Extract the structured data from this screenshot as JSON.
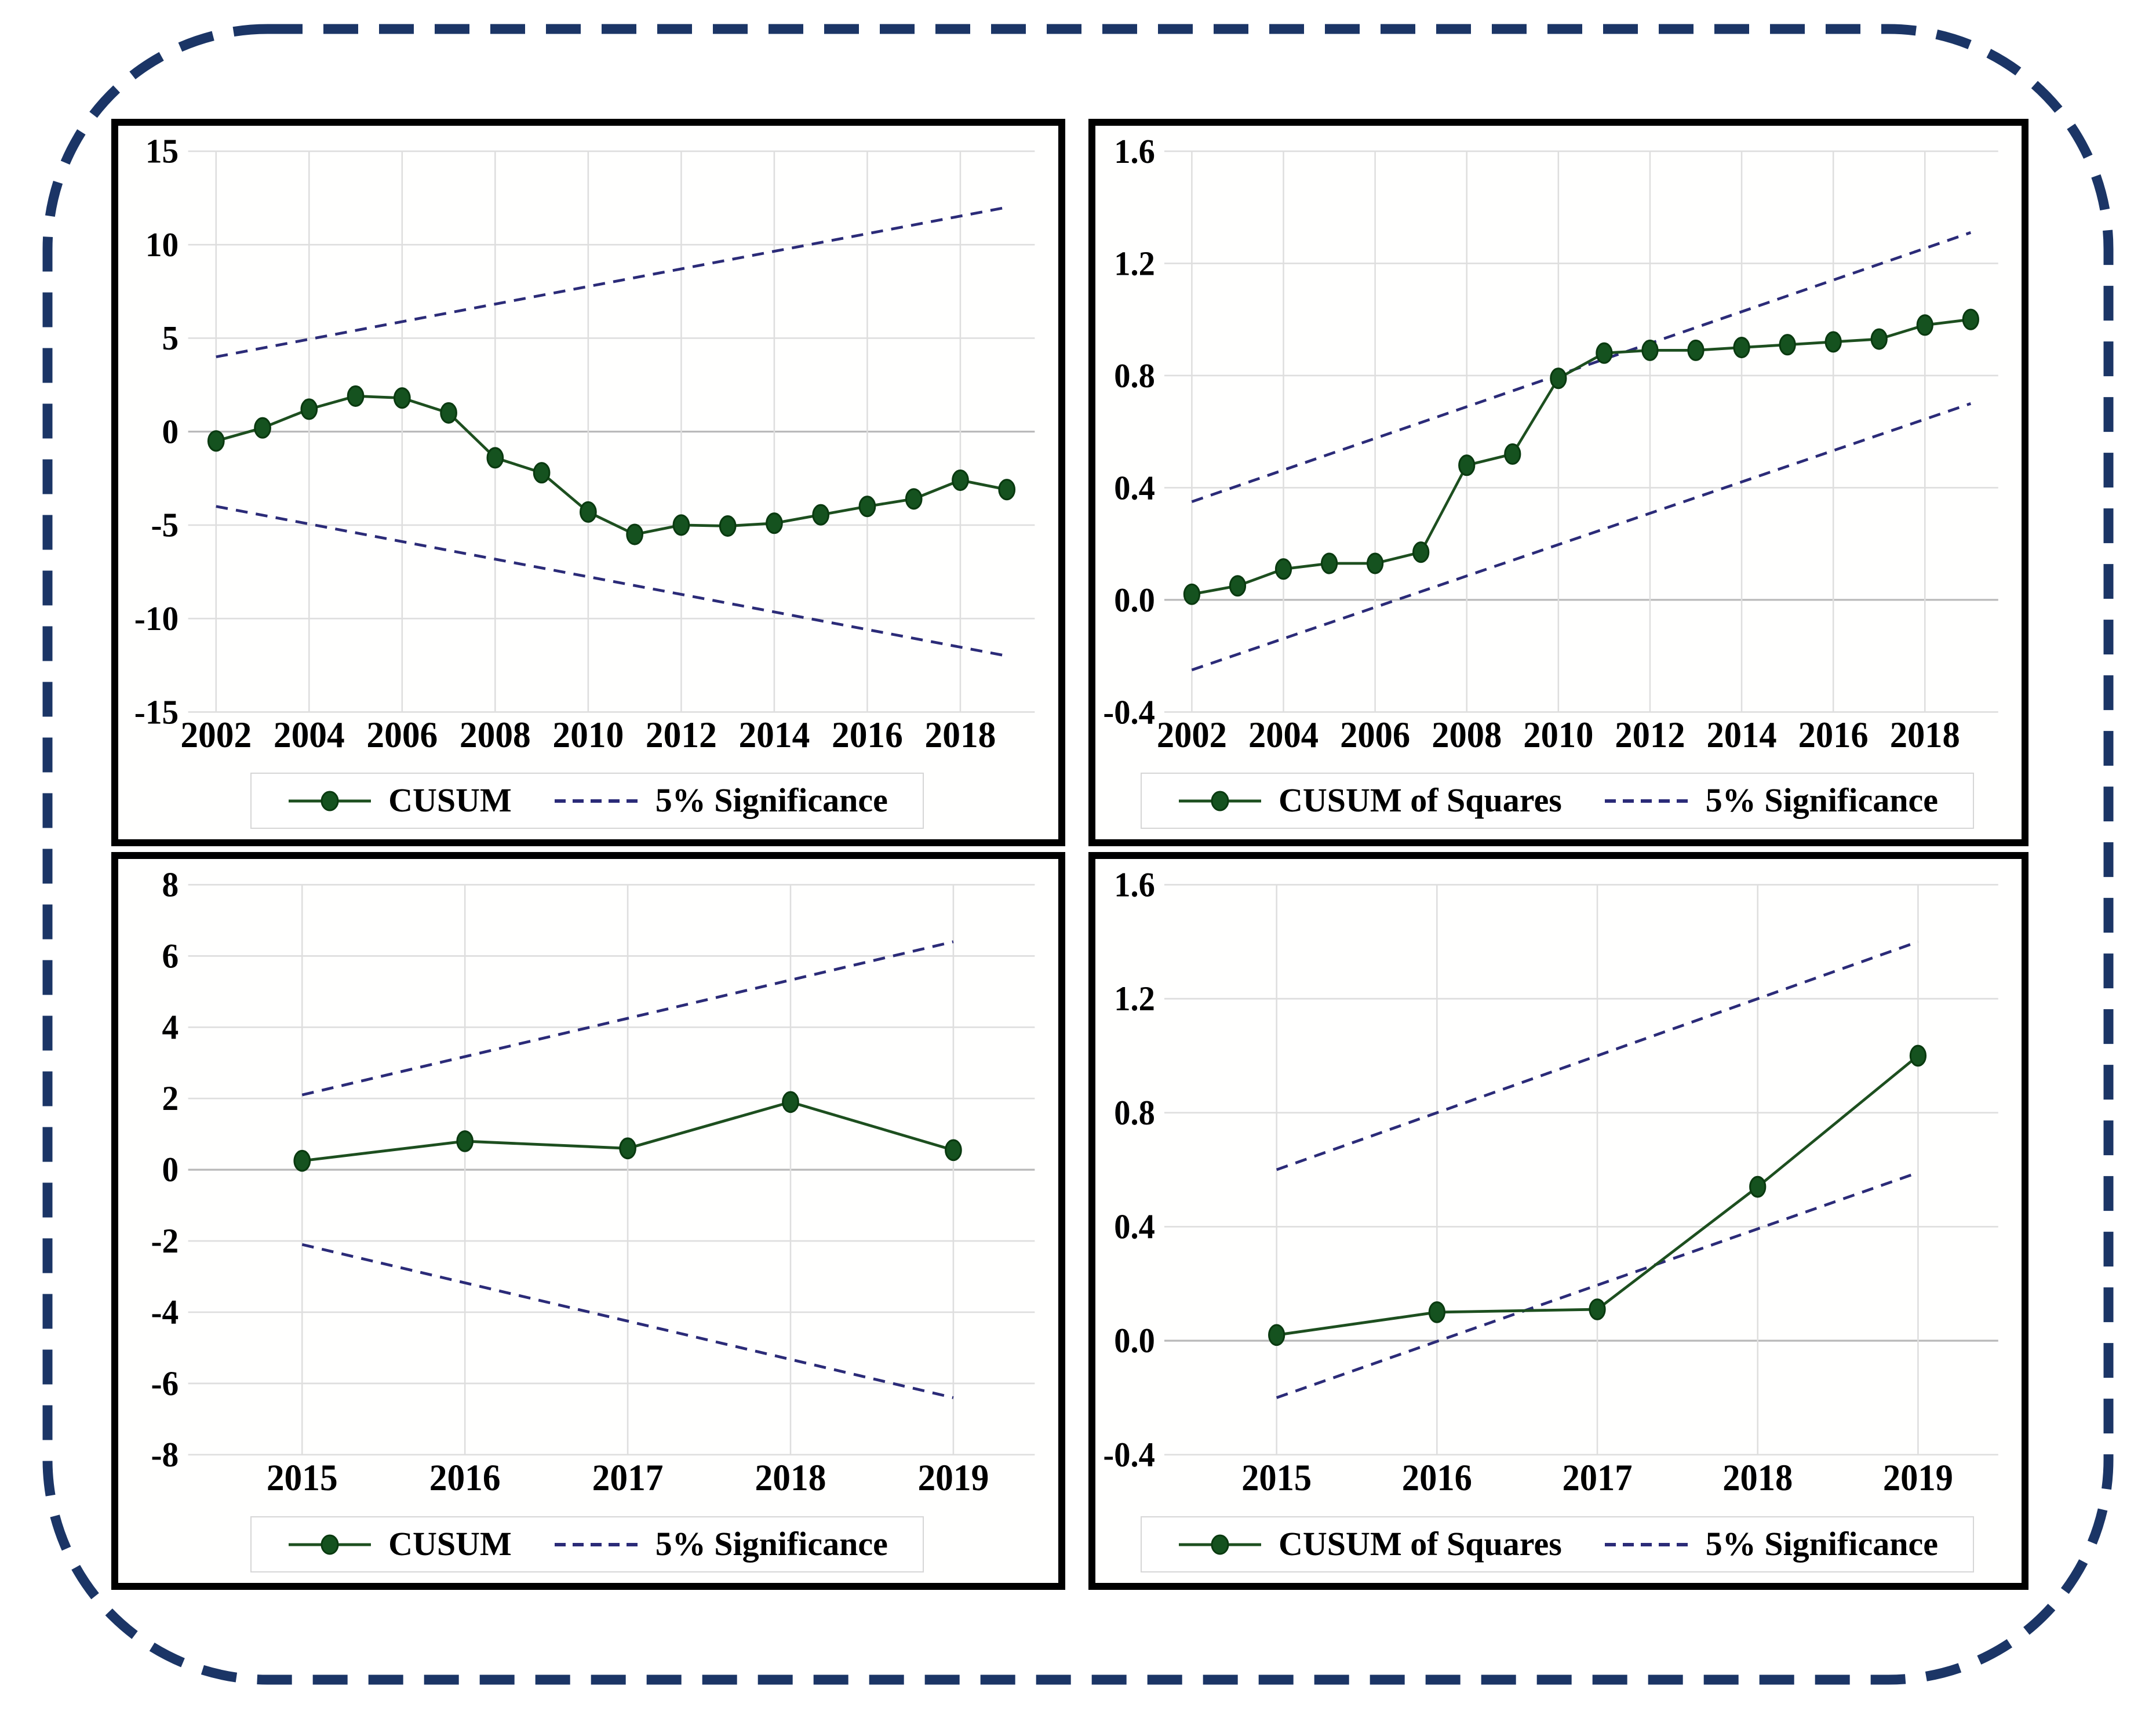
{
  "page": {
    "background": "#ffffff",
    "outer_border_color": "#1b3566"
  },
  "style": {
    "series_line": "#1d4f1f",
    "marker": "#15521f",
    "marker_stroke": "#0a3a10",
    "significance": "#2b2b78",
    "grid": "#dedede",
    "zero_line": "#b8b8b8",
    "text": "#000000"
  },
  "chart_data": [
    {
      "id": "cusum-2002-2019",
      "position": "top-left",
      "type": "line",
      "title": "",
      "legend": {
        "series": "CUSUM",
        "significance": "5% Significance"
      },
      "legend_position": "bottom",
      "grid": true,
      "xlim": [
        2001.4,
        2019.6
      ],
      "ylim": [
        -15,
        15
      ],
      "xticks": [
        {
          "label": "2002",
          "value": 2002
        },
        {
          "label": "2004",
          "value": 2004
        },
        {
          "label": "2006",
          "value": 2006
        },
        {
          "label": "2008",
          "value": 2008
        },
        {
          "label": "2010",
          "value": 2010
        },
        {
          "label": "2012",
          "value": 2012
        },
        {
          "label": "2014",
          "value": 2014
        },
        {
          "label": "2016",
          "value": 2016
        },
        {
          "label": "2018",
          "value": 2018
        }
      ],
      "yticks": [
        {
          "label": "15",
          "value": 15
        },
        {
          "label": "10",
          "value": 10
        },
        {
          "label": "5",
          "value": 5
        },
        {
          "label": "0",
          "value": 0
        },
        {
          "label": "-5",
          "value": -5
        },
        {
          "label": "-10",
          "value": -10
        },
        {
          "label": "-15",
          "value": -15
        }
      ],
      "series": {
        "name": "CUSUM",
        "x": [
          2002,
          2003,
          2004,
          2005,
          2006,
          2007,
          2008,
          2009,
          2010,
          2011,
          2012,
          2013,
          2014,
          2015,
          2016,
          2017,
          2018,
          2019
        ],
        "y": [
          -0.5,
          0.2,
          1.2,
          1.9,
          1.8,
          1.0,
          -1.4,
          -2.2,
          -4.3,
          -5.5,
          -5.0,
          -5.05,
          -4.9,
          -4.45,
          -4.0,
          -3.6,
          -2.6,
          -3.1
        ]
      },
      "bounds": {
        "upper": {
          "x": [
            2002,
            2019
          ],
          "y": [
            4.0,
            12.0
          ]
        },
        "lower": {
          "x": [
            2002,
            2019
          ],
          "y": [
            -4.0,
            -12.0
          ]
        }
      }
    },
    {
      "id": "cusumsq-2002-2019",
      "position": "top-right",
      "type": "line",
      "title": "",
      "legend": {
        "series": "CUSUM of Squares",
        "significance": "5% Significance"
      },
      "legend_position": "bottom",
      "grid": true,
      "xlim": [
        2001.4,
        2019.6
      ],
      "ylim": [
        -0.4,
        1.6
      ],
      "xticks": [
        {
          "label": "2002",
          "value": 2002
        },
        {
          "label": "2004",
          "value": 2004
        },
        {
          "label": "2006",
          "value": 2006
        },
        {
          "label": "2008",
          "value": 2008
        },
        {
          "label": "2010",
          "value": 2010
        },
        {
          "label": "2012",
          "value": 2012
        },
        {
          "label": "2014",
          "value": 2014
        },
        {
          "label": "2016",
          "value": 2016
        },
        {
          "label": "2018",
          "value": 2018
        }
      ],
      "yticks": [
        {
          "label": "1.6",
          "value": 1.6
        },
        {
          "label": "1.2",
          "value": 1.2
        },
        {
          "label": "0.8",
          "value": 0.8
        },
        {
          "label": "0.4",
          "value": 0.4
        },
        {
          "label": "0.0",
          "value": 0.0
        },
        {
          "label": "-0.4",
          "value": -0.4
        }
      ],
      "series": {
        "name": "CUSUM of Squares",
        "x": [
          2002,
          2003,
          2004,
          2005,
          2006,
          2007,
          2008,
          2009,
          2010,
          2011,
          2012,
          2013,
          2014,
          2015,
          2016,
          2017,
          2018,
          2019
        ],
        "y": [
          0.02,
          0.05,
          0.11,
          0.13,
          0.13,
          0.17,
          0.48,
          0.52,
          0.79,
          0.88,
          0.89,
          0.89,
          0.9,
          0.91,
          0.92,
          0.93,
          0.98,
          1.0
        ]
      },
      "bounds": {
        "upper": {
          "x": [
            2002,
            2019
          ],
          "y": [
            0.35,
            1.31
          ]
        },
        "lower": {
          "x": [
            2002,
            2019
          ],
          "y": [
            -0.25,
            0.7
          ]
        }
      }
    },
    {
      "id": "cusum-2015-2019",
      "position": "bottom-left",
      "type": "line",
      "title": "",
      "legend": {
        "series": "CUSUM",
        "significance": "5% Significance"
      },
      "legend_position": "bottom",
      "grid": true,
      "xlim": [
        2014.3,
        2019.5
      ],
      "ylim": [
        -8,
        8
      ],
      "xticks": [
        {
          "label": "2015",
          "value": 2015
        },
        {
          "label": "2016",
          "value": 2016
        },
        {
          "label": "2017",
          "value": 2017
        },
        {
          "label": "2018",
          "value": 2018
        },
        {
          "label": "2019",
          "value": 2019
        }
      ],
      "yticks": [
        {
          "label": "8",
          "value": 8
        },
        {
          "label": "6",
          "value": 6
        },
        {
          "label": "4",
          "value": 4
        },
        {
          "label": "2",
          "value": 2
        },
        {
          "label": "0",
          "value": 0
        },
        {
          "label": "-2",
          "value": -2
        },
        {
          "label": "-4",
          "value": -4
        },
        {
          "label": "-6",
          "value": -6
        },
        {
          "label": "-8",
          "value": -8
        }
      ],
      "series": {
        "name": "CUSUM",
        "x": [
          2015,
          2016,
          2017,
          2018,
          2019
        ],
        "y": [
          0.25,
          0.8,
          0.6,
          1.9,
          0.55
        ]
      },
      "bounds": {
        "upper": {
          "x": [
            2015,
            2019
          ],
          "y": [
            2.1,
            6.4
          ]
        },
        "lower": {
          "x": [
            2015,
            2019
          ],
          "y": [
            -2.1,
            -6.4
          ]
        }
      }
    },
    {
      "id": "cusumsq-2015-2019",
      "position": "bottom-right",
      "type": "line",
      "title": "",
      "legend": {
        "series": "CUSUM of Squares",
        "significance": "5% Significance"
      },
      "legend_position": "bottom",
      "grid": true,
      "xlim": [
        2014.3,
        2019.5
      ],
      "ylim": [
        -0.4,
        1.6
      ],
      "xticks": [
        {
          "label": "2015",
          "value": 2015
        },
        {
          "label": "2016",
          "value": 2016
        },
        {
          "label": "2017",
          "value": 2017
        },
        {
          "label": "2018",
          "value": 2018
        },
        {
          "label": "2019",
          "value": 2019
        }
      ],
      "yticks": [
        {
          "label": "1.6",
          "value": 1.6
        },
        {
          "label": "1.2",
          "value": 1.2
        },
        {
          "label": "0.8",
          "value": 0.8
        },
        {
          "label": "0.4",
          "value": 0.4
        },
        {
          "label": "0.0",
          "value": 0.0
        },
        {
          "label": "-0.4",
          "value": -0.4
        }
      ],
      "series": {
        "name": "CUSUM of Squares",
        "x": [
          2015,
          2016,
          2017,
          2018,
          2019
        ],
        "y": [
          0.02,
          0.1,
          0.11,
          0.54,
          1.0
        ]
      },
      "bounds": {
        "upper": {
          "x": [
            2015,
            2019
          ],
          "y": [
            0.6,
            1.4
          ]
        },
        "lower": {
          "x": [
            2015,
            2019
          ],
          "y": [
            -0.2,
            0.59
          ]
        }
      }
    }
  ]
}
